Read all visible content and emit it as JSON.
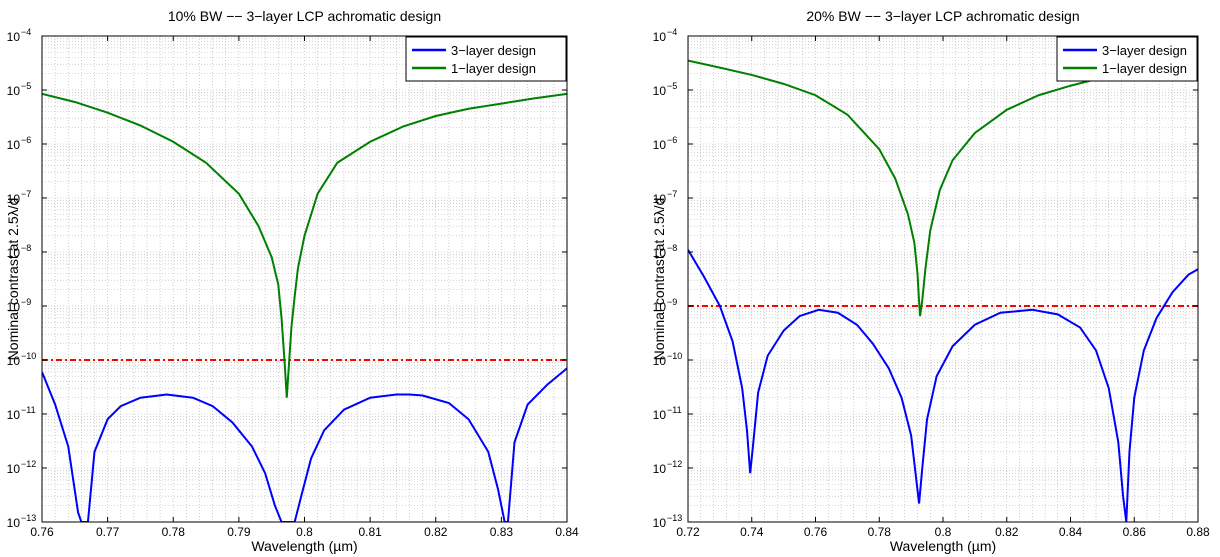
{
  "chart_data": [
    {
      "type": "line",
      "title": "10% BW −− 3−layer LCP achromatic design",
      "xlabel": "Wavelength (µm)",
      "ylabel": "Nominal contrast at 2.5λ/d",
      "xlim": [
        0.76,
        0.84
      ],
      "ylim_exponent": [
        -13,
        -4
      ],
      "yscale": "log",
      "grid": true,
      "legend_position": "top-right",
      "xticks": [
        "0.76",
        "0.77",
        "0.78",
        "0.79",
        "0.8",
        "0.81",
        "0.82",
        "0.83",
        "0.84"
      ],
      "yticks": [
        "10",
        "10",
        "10",
        "10",
        "10",
        "10",
        "10",
        "10",
        "10",
        "10"
      ],
      "yticks_exponent": [
        "−13",
        "−12",
        "−11",
        "−10",
        "−9",
        "−8",
        "−7",
        "−6",
        "−5",
        "−4"
      ],
      "threshold": {
        "y": 1e-10,
        "color": "#ff0000"
      },
      "series": [
        {
          "name": "3−layer design",
          "color": "#0000ff",
          "x": [
            0.76,
            0.762,
            0.764,
            0.7655,
            0.766,
            0.767,
            0.768,
            0.77,
            0.772,
            0.775,
            0.779,
            0.783,
            0.786,
            0.789,
            0.792,
            0.794,
            0.7955,
            0.7965,
            0.7985,
            0.7995,
            0.801,
            0.803,
            0.806,
            0.81,
            0.814,
            0.816,
            0.818,
            0.822,
            0.825,
            0.828,
            0.8295,
            0.8305,
            0.831,
            0.832,
            0.834,
            0.837,
            0.84
          ],
          "y": [
            6e-11,
            1.5e-11,
            2.5e-12,
            1.5e-13,
            1e-13,
            1e-13,
            2e-12,
            8e-12,
            1.4e-11,
            2e-11,
            2.3e-11,
            2e-11,
            1.4e-11,
            7e-12,
            2.5e-12,
            8e-13,
            2e-13,
            1e-13,
            1e-13,
            3e-13,
            1.5e-12,
            5e-12,
            1.2e-11,
            2e-11,
            2.3e-11,
            2.3e-11,
            2.2e-11,
            1.6e-11,
            8e-12,
            2e-12,
            4e-13,
            1e-13,
            1e-13,
            3e-12,
            1.5e-11,
            3.5e-11,
            7e-11
          ]
        },
        {
          "name": "1−layer design",
          "color": "#008000",
          "x": [
            0.76,
            0.765,
            0.77,
            0.775,
            0.78,
            0.785,
            0.79,
            0.793,
            0.795,
            0.796,
            0.7965,
            0.797,
            0.7973,
            0.798,
            0.7985,
            0.799,
            0.8,
            0.802,
            0.805,
            0.81,
            0.815,
            0.82,
            0.825,
            0.83,
            0.835,
            0.84
          ],
          "y": [
            8.5e-06,
            6e-06,
            3.8e-06,
            2.2e-06,
            1.1e-06,
            4.5e-07,
            1.2e-07,
            3e-08,
            8e-09,
            2.5e-09,
            6e-10,
            8e-11,
            2e-11,
            4e-10,
            1.5e-09,
            5e-09,
            2e-08,
            1.2e-07,
            4.5e-07,
            1.1e-06,
            2.1e-06,
            3.3e-06,
            4.5e-06,
            5.6e-06,
            7e-06,
            8.5e-06
          ]
        }
      ]
    },
    {
      "type": "line",
      "title": "20% BW −− 3−layer LCP achromatic design",
      "xlabel": "Wavelength (µm)",
      "ylabel": "Nominal contrast at 2.5λ/d",
      "xlim": [
        0.72,
        0.88
      ],
      "ylim_exponent": [
        -13,
        -4
      ],
      "yscale": "log",
      "grid": true,
      "legend_position": "top-right",
      "xticks": [
        "0.72",
        "0.74",
        "0.76",
        "0.78",
        "0.8",
        "0.82",
        "0.84",
        "0.86",
        "0.88"
      ],
      "yticks": [
        "10",
        "10",
        "10",
        "10",
        "10",
        "10",
        "10",
        "10",
        "10",
        "10"
      ],
      "yticks_exponent": [
        "−13",
        "−12",
        "−11",
        "−10",
        "−9",
        "−8",
        "−7",
        "−6",
        "−5",
        "−4"
      ],
      "threshold": {
        "y": 1e-09,
        "color": "#ff0000"
      },
      "series": [
        {
          "name": "3−layer design",
          "color": "#0000ff",
          "x": [
            0.72,
            0.725,
            0.73,
            0.734,
            0.737,
            0.7385,
            0.7395,
            0.7405,
            0.742,
            0.745,
            0.75,
            0.755,
            0.761,
            0.767,
            0.773,
            0.778,
            0.783,
            0.787,
            0.79,
            0.7915,
            0.7925,
            0.7935,
            0.795,
            0.798,
            0.803,
            0.81,
            0.818,
            0.828,
            0.836,
            0.843,
            0.848,
            0.852,
            0.855,
            0.8565,
            0.8575,
            0.8585,
            0.86,
            0.863,
            0.867,
            0.872,
            0.877,
            0.88
          ],
          "y": [
            1.1e-08,
            3.5e-09,
            1e-09,
            2.2e-10,
            3e-11,
            5e-12,
            8e-13,
            3e-12,
            2.5e-11,
            1.2e-10,
            3.5e-10,
            6.5e-10,
            8.5e-10,
            7.5e-10,
            4.5e-10,
            2e-10,
            7e-11,
            2e-11,
            4e-12,
            7e-13,
            2.2e-13,
            1e-12,
            8e-12,
            5e-11,
            1.8e-10,
            4.5e-10,
            7.5e-10,
            8.5e-10,
            7e-10,
            4e-10,
            1.5e-10,
            3e-11,
            3e-12,
            3e-13,
            1e-13,
            2e-12,
            2e-11,
            1.5e-10,
            6e-10,
            1.8e-09,
            3.8e-09,
            4.8e-09
          ]
        },
        {
          "name": "1−layer design",
          "color": "#008000",
          "x": [
            0.72,
            0.73,
            0.74,
            0.75,
            0.76,
            0.77,
            0.78,
            0.785,
            0.789,
            0.791,
            0.792,
            0.7925,
            0.7928,
            0.7935,
            0.7945,
            0.796,
            0.799,
            0.803,
            0.81,
            0.82,
            0.83,
            0.84,
            0.85,
            0.86,
            0.87,
            0.88
          ],
          "y": [
            3.5e-05,
            2.6e-05,
            1.9e-05,
            1.3e-05,
            8e-06,
            3.5e-06,
            8e-07,
            2.3e-07,
            5e-08,
            1.5e-08,
            4e-09,
            1.2e-09,
            6.5e-10,
            1.3e-09,
            5e-09,
            2.5e-08,
            1.4e-07,
            5e-07,
            1.6e-06,
            4.3e-06,
            8e-06,
            1.2e-05,
            1.7e-05,
            2.2e-05,
            2.7e-05,
            3.2e-05
          ]
        }
      ]
    }
  ]
}
